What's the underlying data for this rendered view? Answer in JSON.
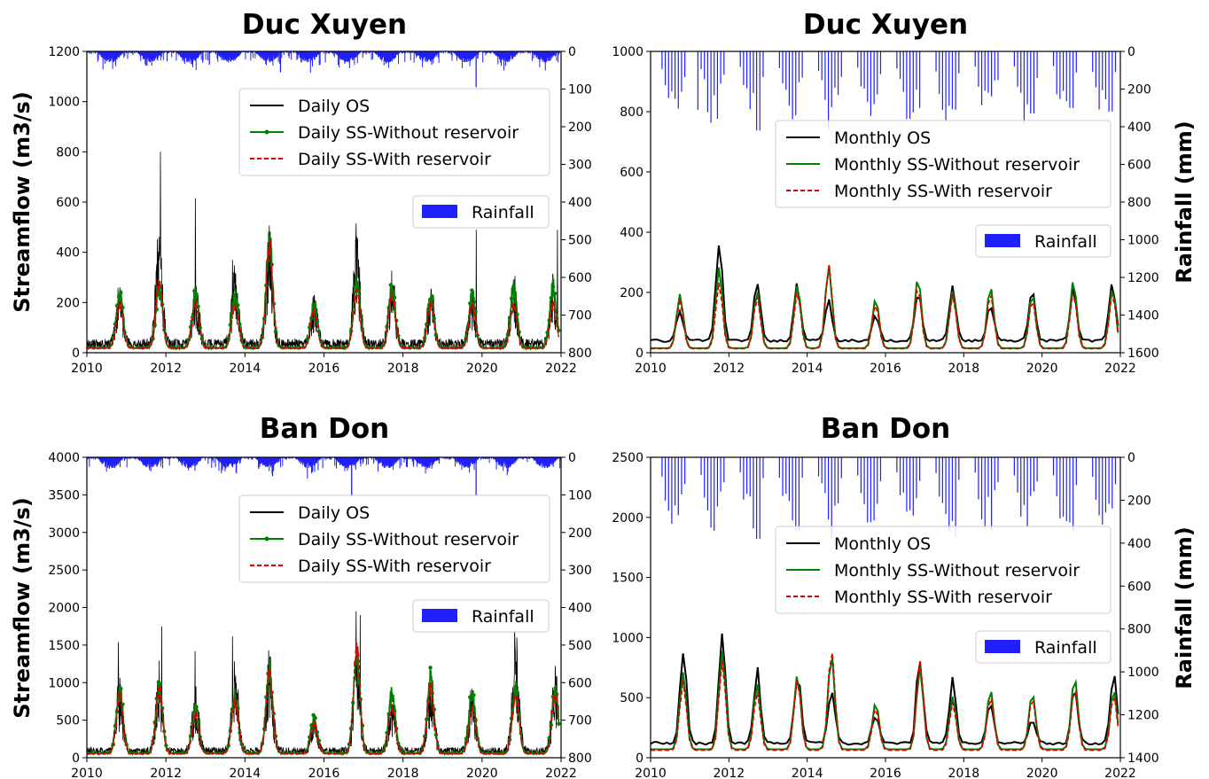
{
  "figure": {
    "ylabel_left": "Streamflow (m3/s)",
    "ylabel_right": "Rainfall (mm)"
  },
  "colors": {
    "rainfall": "#1f1fff",
    "observed": "#000000",
    "without_reservoir": "#008000",
    "with_reservoir": "#dd0000"
  },
  "chart_data": [
    {
      "id": "p1",
      "type": "line",
      "title": "Duc Xuyen",
      "resolution": "daily",
      "xlim": [
        2010,
        2022
      ],
      "xticks": [
        2010,
        2012,
        2014,
        2016,
        2018,
        2020,
        2022
      ],
      "ylim": [
        0,
        1200
      ],
      "yticks": [
        0,
        200,
        400,
        600,
        800,
        1000,
        1200
      ],
      "y2lim": [
        800,
        0
      ],
      "y2ticks": [
        0,
        100,
        200,
        300,
        400,
        500,
        600,
        700,
        800
      ],
      "legend_labels": [
        "Daily OS",
        "Daily SS-Without reservoir",
        "Daily SS-With reservoir"
      ],
      "bar_legend_label": "Rainfall",
      "grid": false,
      "profile": {
        "base_os": 35,
        "base_sim": 20,
        "peaks": [
          [
            2010.83,
            160,
            210,
            175
          ],
          [
            2011.83,
            300,
            240,
            270
          ],
          [
            2012.75,
            160,
            210,
            180
          ],
          [
            2013.75,
            200,
            210,
            175
          ],
          [
            2014.62,
            330,
            420,
            400
          ],
          [
            2015.75,
            130,
            175,
            145
          ],
          [
            2016.83,
            280,
            260,
            220
          ],
          [
            2017.72,
            190,
            230,
            210
          ],
          [
            2018.7,
            160,
            210,
            180
          ],
          [
            2019.75,
            140,
            210,
            170
          ],
          [
            2020.8,
            180,
            240,
            175
          ],
          [
            2021.8,
            170,
            240,
            175
          ]
        ],
        "spikes": [
          [
            2011.87,
            800
          ],
          [
            2012.76,
            615
          ],
          [
            2016.85,
            515
          ],
          [
            2010.88,
            250
          ],
          [
            2019.9,
            490
          ],
          [
            2021.97,
            490
          ],
          [
            2014.6,
            440
          ],
          [
            2013.7,
            370
          ]
        ]
      },
      "rain_peaks": [
        [
          2019.85,
          95
        ],
        [
          2014.9,
          55
        ],
        [
          2013.1,
          35
        ]
      ]
    },
    {
      "id": "p2",
      "type": "line",
      "title": "Duc Xuyen",
      "resolution": "monthly",
      "xlim": [
        2010,
        2022
      ],
      "xticks": [
        2010,
        2012,
        2014,
        2016,
        2018,
        2020,
        2022
      ],
      "ylim": [
        0,
        1000
      ],
      "yticks": [
        0,
        200,
        400,
        600,
        800,
        1000
      ],
      "y2lim": [
        1600,
        0
      ],
      "y2ticks": [
        0,
        200,
        400,
        600,
        800,
        1000,
        1200,
        1400,
        1600
      ],
      "legend_labels": [
        "Monthly OS",
        "Monthly SS-Without reservoir",
        "Monthly SS-With reservoir"
      ],
      "bar_legend_label": "Rainfall",
      "grid": false,
      "profile": {
        "base_os": 40,
        "base_sim": 15,
        "peaks": [
          [
            2010.75,
            100,
            180,
            165
          ],
          [
            2011.75,
            310,
            270,
            220
          ],
          [
            2012.72,
            215,
            190,
            175
          ],
          [
            2013.75,
            190,
            210,
            190
          ],
          [
            2014.55,
            130,
            275,
            280
          ],
          [
            2015.75,
            90,
            165,
            150
          ],
          [
            2016.83,
            165,
            235,
            205
          ],
          [
            2017.72,
            175,
            190,
            180
          ],
          [
            2018.68,
            120,
            205,
            185
          ],
          [
            2019.75,
            150,
            180,
            165
          ],
          [
            2020.8,
            160,
            225,
            190
          ],
          [
            2021.8,
            195,
            200,
            185
          ]
        ],
        "spikes": []
      },
      "rain_peaks": [
        [
          2011.2,
          310
        ],
        [
          2012.75,
          420
        ],
        [
          2013.6,
          360
        ],
        [
          2014.55,
          420
        ],
        [
          2016.9,
          300
        ],
        [
          2017.8,
          310
        ],
        [
          2019.75,
          330
        ],
        [
          2020.75,
          300
        ],
        [
          2021.75,
          320
        ]
      ]
    },
    {
      "id": "p3",
      "type": "line",
      "title": "Ban Don",
      "resolution": "daily",
      "xlim": [
        2010,
        2022
      ],
      "xticks": [
        2010,
        2012,
        2014,
        2016,
        2018,
        2020,
        2022
      ],
      "ylim": [
        0,
        4000
      ],
      "yticks": [
        0,
        500,
        1000,
        1500,
        2000,
        2500,
        3000,
        3500,
        4000
      ],
      "y2lim": [
        800,
        0
      ],
      "y2ticks": [
        0,
        100,
        200,
        300,
        400,
        500,
        600,
        700,
        800
      ],
      "legend_labels": [
        "Daily OS",
        "Daily SS-Without reservoir",
        "Daily SS-With reservoir"
      ],
      "bar_legend_label": "Rainfall",
      "grid": false,
      "profile": {
        "base_os": 90,
        "base_sim": 60,
        "peaks": [
          [
            2010.83,
            650,
            850,
            780
          ],
          [
            2011.83,
            750,
            850,
            860
          ],
          [
            2012.75,
            550,
            600,
            520
          ],
          [
            2013.75,
            780,
            750,
            680
          ],
          [
            2014.62,
            900,
            1100,
            1050
          ],
          [
            2015.75,
            300,
            450,
            400
          ],
          [
            2016.83,
            900,
            1300,
            1400
          ],
          [
            2017.72,
            520,
            800,
            620
          ],
          [
            2018.7,
            700,
            1000,
            880
          ],
          [
            2019.75,
            550,
            800,
            600
          ],
          [
            2020.85,
            1050,
            850,
            780
          ],
          [
            2021.85,
            700,
            800,
            780
          ]
        ],
        "spikes": [
          [
            2010.8,
            1540
          ],
          [
            2011.9,
            1750
          ],
          [
            2012.75,
            1420
          ],
          [
            2013.7,
            1620
          ],
          [
            2016.85,
            1950
          ],
          [
            2020.88,
            1700
          ],
          [
            2016.95,
            1900
          ],
          [
            2014.6,
            1240
          ]
        ]
      },
      "rain_peaks": [
        [
          2016.7,
          105
        ],
        [
          2019.85,
          100
        ],
        [
          2014.7,
          50
        ]
      ]
    },
    {
      "id": "p4",
      "type": "line",
      "title": "Ban Don",
      "resolution": "monthly",
      "xlim": [
        2010,
        2022
      ],
      "xticks": [
        2010,
        2012,
        2014,
        2016,
        2018,
        2020,
        2022
      ],
      "ylim": [
        0,
        2500
      ],
      "yticks": [
        0,
        500,
        1000,
        1500,
        2000,
        2500
      ],
      "y2lim": [
        1400,
        0
      ],
      "y2ticks": [
        0,
        200,
        400,
        600,
        800,
        1000,
        1200,
        1400
      ],
      "legend_labels": [
        "Monthly OS",
        "Monthly SS-Without reservoir",
        "Monthly SS-With reservoir"
      ],
      "bar_legend_label": "Rainfall",
      "grid": false,
      "profile": {
        "base_os": 120,
        "base_sim": 70,
        "peaks": [
          [
            2010.83,
            780,
            640,
            580
          ],
          [
            2011.83,
            870,
            820,
            740
          ],
          [
            2012.72,
            610,
            550,
            490
          ],
          [
            2013.75,
            600,
            620,
            600
          ],
          [
            2014.62,
            440,
            790,
            840
          ],
          [
            2015.75,
            260,
            390,
            360
          ],
          [
            2016.88,
            730,
            690,
            750
          ],
          [
            2017.72,
            550,
            440,
            400
          ],
          [
            2018.68,
            320,
            500,
            450
          ],
          [
            2019.75,
            200,
            470,
            440
          ],
          [
            2020.83,
            450,
            600,
            520
          ],
          [
            2021.83,
            580,
            500,
            460
          ]
        ],
        "spikes": []
      },
      "rain_peaks": [
        [
          2012.75,
          380
        ],
        [
          2013.75,
          340
        ],
        [
          2014.65,
          380
        ],
        [
          2017.8,
          370
        ],
        [
          2018.7,
          340
        ],
        [
          2020.8,
          340
        ]
      ]
    }
  ]
}
